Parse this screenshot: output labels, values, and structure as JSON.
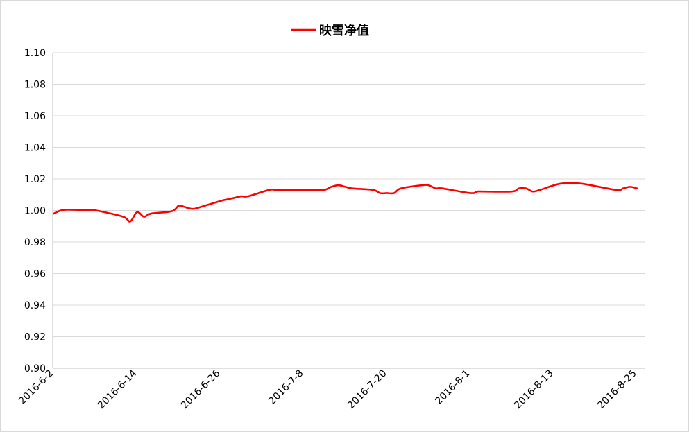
{
  "chart_data": {
    "type": "line",
    "legend_position": "top-center",
    "grid": true,
    "xlabel": "",
    "ylabel": "",
    "ylim": [
      0.9,
      1.1
    ],
    "yticks": [
      "0.90",
      "0.92",
      "0.94",
      "0.96",
      "0.98",
      "1.00",
      "1.02",
      "1.04",
      "1.06",
      "1.08",
      "1.10"
    ],
    "xtick_labels": [
      "2016-6-2",
      "2016-6-14",
      "2016-6-26",
      "2016-7-8",
      "2016-7-20",
      "2016-8-1",
      "2016-8-13",
      "2016-8-25"
    ],
    "series": [
      {
        "name": "映雪净值",
        "color": "#ff0000",
        "points": [
          [
            "2016-6-2",
            0.998
          ],
          [
            "2016-6-3",
            1.0
          ],
          [
            "2016-6-4",
            1.0005
          ],
          [
            "2016-6-6",
            1.0003
          ],
          [
            "2016-6-7",
            1.0002
          ],
          [
            "2016-6-8",
            1.0001
          ],
          [
            "2016-6-12",
            0.996
          ],
          [
            "2016-6-13",
            0.993
          ],
          [
            "2016-6-14",
            0.999
          ],
          [
            "2016-6-15",
            0.996
          ],
          [
            "2016-6-16",
            0.998
          ],
          [
            "2016-6-19",
            0.9995
          ],
          [
            "2016-6-20",
            1.003
          ],
          [
            "2016-6-21",
            1.002
          ],
          [
            "2016-6-22",
            1.001
          ],
          [
            "2016-6-23",
            1.002
          ],
          [
            "2016-6-26",
            1.006
          ],
          [
            "2016-6-27",
            1.007
          ],
          [
            "2016-6-28",
            1.008
          ],
          [
            "2016-6-29",
            1.009
          ],
          [
            "2016-6-30",
            1.009
          ],
          [
            "2016-7-3",
            1.013
          ],
          [
            "2016-7-4",
            1.013
          ],
          [
            "2016-7-5",
            1.013
          ],
          [
            "2016-7-10",
            1.013
          ],
          [
            "2016-7-11",
            1.013
          ],
          [
            "2016-7-12",
            1.015
          ],
          [
            "2016-7-13",
            1.016
          ],
          [
            "2016-7-14",
            1.015
          ],
          [
            "2016-7-15",
            1.014
          ],
          [
            "2016-7-18",
            1.013
          ],
          [
            "2016-7-19",
            1.011
          ],
          [
            "2016-7-20",
            1.011
          ],
          [
            "2016-7-21",
            1.011
          ],
          [
            "2016-7-22",
            1.014
          ],
          [
            "2016-7-25",
            1.016
          ],
          [
            "2016-7-26",
            1.016
          ],
          [
            "2016-7-27",
            1.014
          ],
          [
            "2016-7-28",
            1.014
          ],
          [
            "2016-8-1",
            1.011
          ],
          [
            "2016-8-2",
            1.012
          ],
          [
            "2016-8-3",
            1.012
          ],
          [
            "2016-8-7",
            1.012
          ],
          [
            "2016-8-8",
            1.014
          ],
          [
            "2016-8-9",
            1.014
          ],
          [
            "2016-8-10",
            1.012
          ],
          [
            "2016-8-11",
            1.013
          ],
          [
            "2016-8-14",
            1.017
          ],
          [
            "2016-8-17",
            1.017
          ],
          [
            "2016-8-22",
            1.013
          ],
          [
            "2016-8-23",
            1.014
          ],
          [
            "2016-8-24",
            1.015
          ],
          [
            "2016-8-25",
            1.014
          ]
        ]
      }
    ]
  }
}
